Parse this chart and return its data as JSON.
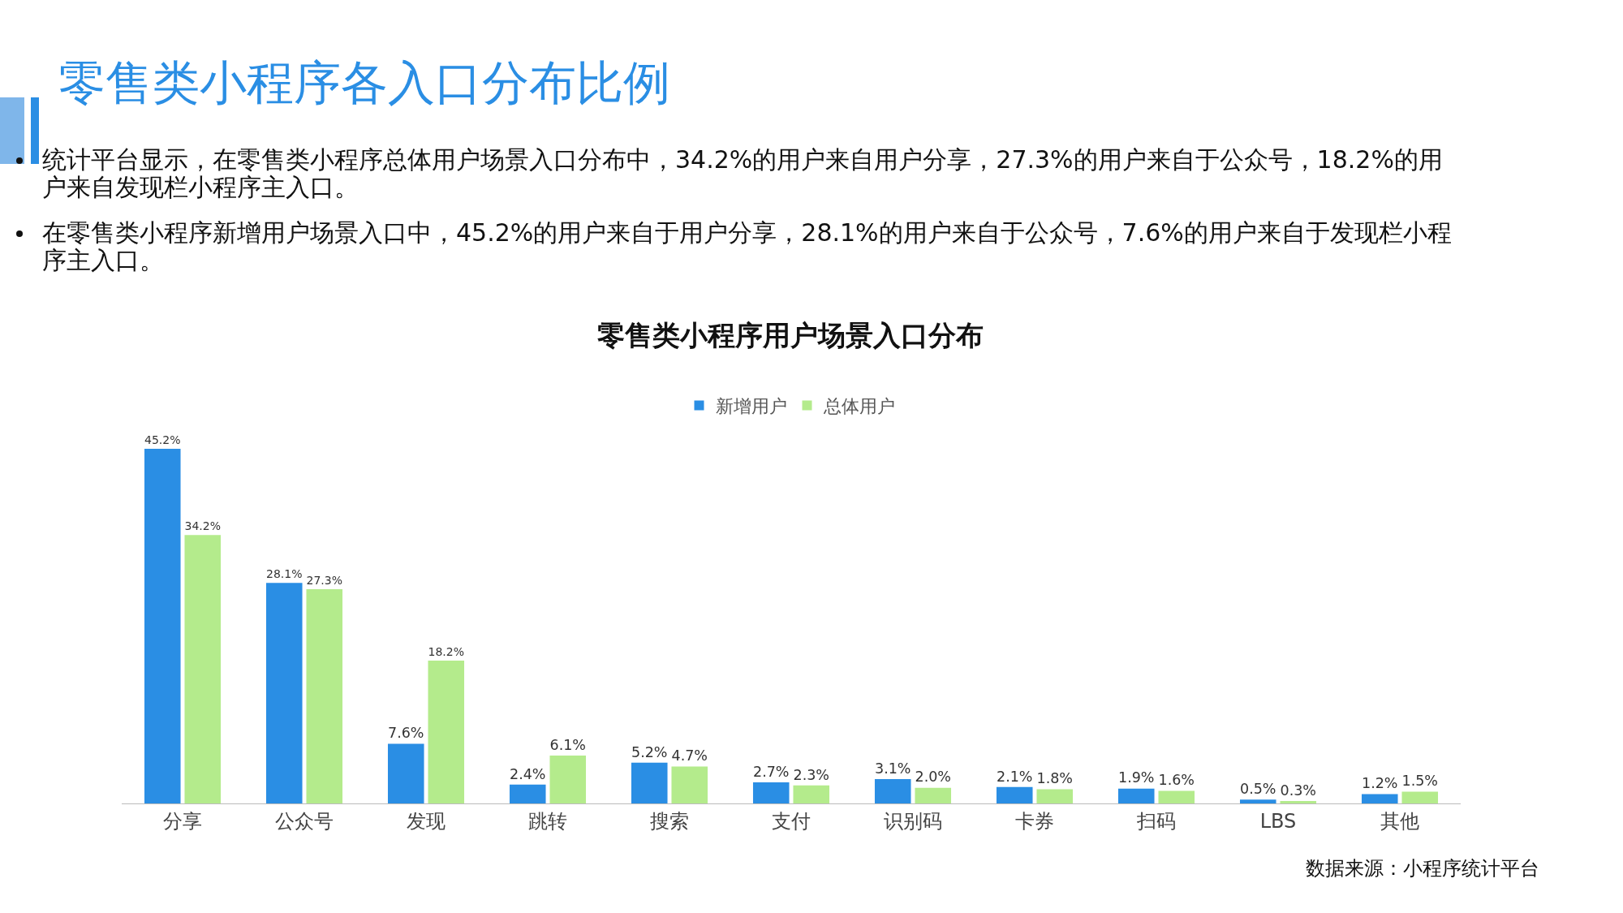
{
  "chart_data": {
    "type": "bar",
    "title": "零售类小程序各入口分布比例",
    "subtitle": "零售类小程序用户场景入口分布",
    "annotations": [
      "统计平台显示，在零售类小程序总体用户场景入口分布中，34.2%的用户来自用户分享，27.3%的用户来自于公众号，18.2%的用户来自发现栏小程序主入口。",
      "在零售类小程序新增用户场景入口中，45.2%的用户来自于用户分享，28.1%的用户来自于公众号，7.6%的用户来自于发现栏小程序主入口。",
      "数据来源：小程序统计平台"
    ],
    "categories": [
      "分享",
      "公众号",
      "发现",
      "跳转",
      "搜索",
      "支付",
      "识别码",
      "卡券",
      "扫码",
      "LBS",
      "其他"
    ],
    "series": [
      {
        "name": "新增用户",
        "color": "#2a8ee4",
        "values": [
          45.2,
          28.1,
          7.6,
          2.4,
          5.2,
          2.7,
          3.1,
          2.1,
          1.9,
          0.5,
          1.2
        ],
        "value_labels": [
          "45.2%",
          "28.1%",
          "7.6%",
          "2.4%",
          "5.2%",
          "2.7%",
          "3.1%",
          "2.1%",
          "1.9%",
          "0.5%",
          "1.2%"
        ]
      },
      {
        "name": "总体用户",
        "color": "#b4eb8c",
        "values": [
          34.2,
          27.3,
          18.2,
          6.1,
          4.7,
          2.3,
          2.0,
          1.8,
          1.6,
          0.3,
          1.5
        ],
        "value_labels": [
          "34.2%",
          "27.3%",
          "18.2%",
          "6.1%",
          "4.7%",
          "2.3%",
          "2.0%",
          "1.8%",
          "1.6%",
          "0.3%",
          "1.5%"
        ]
      }
    ],
    "legend": "top",
    "grid": false,
    "tick_labels": "x"
  }
}
